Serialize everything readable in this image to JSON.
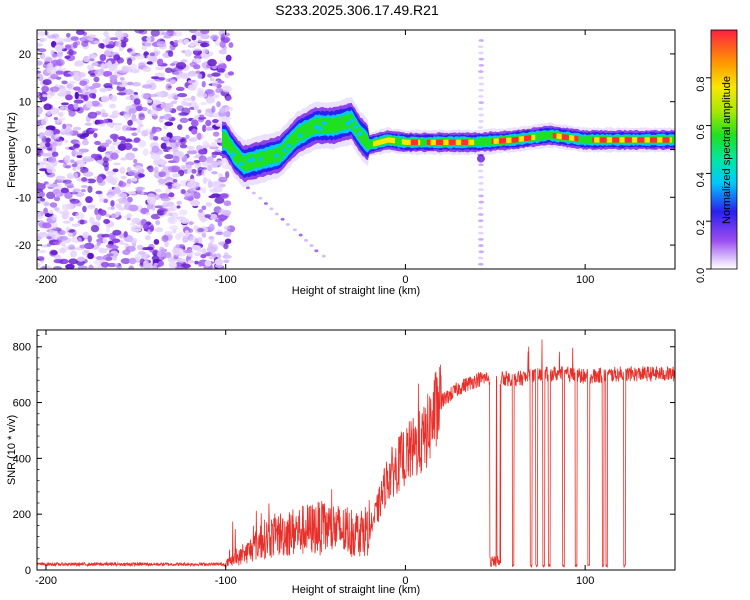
{
  "title": "S233.2025.306.17.49.R21",
  "colors": {
    "spectrogram_hue_low": "#ffffff",
    "snr_line": "#e8302a",
    "axis": "#000000"
  },
  "chart_data": [
    {
      "type": "heatmap",
      "title": "S233.2025.306.17.49.R21",
      "xlabel": "Height of straight line (km)",
      "ylabel": "Frequency (Hz)",
      "xlim": [
        -205,
        150
      ],
      "ylim": [
        -25,
        25
      ],
      "x_ticks": [
        "-200",
        "-100",
        "0",
        "100"
      ],
      "y_ticks": [
        "20",
        "10",
        "0",
        "-10",
        "-20"
      ],
      "colorbar": {
        "label": "Normalized spectral amplitude",
        "range": [
          0.0,
          1.0
        ],
        "ticks": [
          "0.0",
          "0.2",
          "0.4",
          "0.6",
          "0.8"
        ]
      },
      "ridge": [
        {
          "x": -100,
          "y": 2
        },
        {
          "x": -95,
          "y": -1
        },
        {
          "x": -90,
          "y": -3
        },
        {
          "x": -80,
          "y": -2
        },
        {
          "x": -70,
          "y": -1
        },
        {
          "x": -60,
          "y": 3
        },
        {
          "x": -50,
          "y": 5
        },
        {
          "x": -40,
          "y": 5
        },
        {
          "x": -30,
          "y": 6
        },
        {
          "x": -25,
          "y": 3
        },
        {
          "x": -20,
          "y": 1
        },
        {
          "x": -10,
          "y": 2
        },
        {
          "x": 0,
          "y": 1.5
        },
        {
          "x": 20,
          "y": 1.5
        },
        {
          "x": 40,
          "y": 1.5
        },
        {
          "x": 60,
          "y": 2
        },
        {
          "x": 80,
          "y": 3
        },
        {
          "x": 100,
          "y": 2
        },
        {
          "x": 150,
          "y": 2
        }
      ],
      "noise_region": [
        -205,
        -100
      ],
      "vertical_artifact_x": 42
    },
    {
      "type": "line",
      "xlabel": "Height of straight line (km)",
      "ylabel": "SNR (10 * v/v)",
      "xlim": [
        -205,
        150
      ],
      "ylim": [
        0,
        860
      ],
      "x_ticks": [
        "-200",
        "-100",
        "0",
        "100"
      ],
      "y_ticks": [
        "800",
        "600",
        "400",
        "200",
        "0"
      ],
      "series": [
        {
          "name": "SNR",
          "x": [
            -205,
            -150,
            -100,
            -90,
            -80,
            -70,
            -60,
            -50,
            -40,
            -30,
            -20,
            -15,
            -10,
            0,
            10,
            20,
            30,
            40,
            50,
            60,
            70,
            80,
            90,
            100,
            120,
            150
          ],
          "y": [
            20,
            20,
            20,
            50,
            100,
            120,
            130,
            140,
            140,
            120,
            140,
            220,
            320,
            400,
            450,
            600,
            650,
            680,
            690,
            680,
            690,
            700,
            700,
            690,
            700,
            700
          ]
        }
      ],
      "dropouts_x": [
        48,
        50,
        52,
        60,
        70,
        73,
        77,
        80,
        88,
        95,
        102,
        110,
        112,
        122
      ]
    }
  ]
}
